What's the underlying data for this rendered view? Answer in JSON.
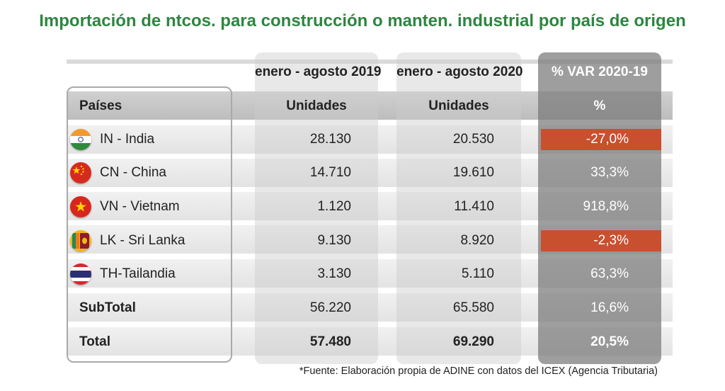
{
  "title": "Importación de ntcos. para construcción o manten. industrial por país de origen",
  "chart_data": {
    "type": "table",
    "period_headers": [
      "enero - agosto 2019",
      "enero - agosto 2020",
      "% VAR 2020-19"
    ],
    "columns": [
      "Países",
      "Unidades",
      "Unidades",
      "%"
    ],
    "rows": [
      {
        "country": "IN - India",
        "v2019": "28.130",
        "v2020": "20.530",
        "var": "-27,0%",
        "negative": true,
        "flag_icon": "india-flag-icon"
      },
      {
        "country": "CN - China",
        "v2019": "14.710",
        "v2020": "19.610",
        "var": "33,3%",
        "negative": false,
        "flag_icon": "china-flag-icon"
      },
      {
        "country": "VN - Vietnam",
        "v2019": "1.120",
        "v2020": "11.410",
        "var": "918,8%",
        "negative": false,
        "flag_icon": "vietnam-flag-icon"
      },
      {
        "country": "LK - Sri Lanka",
        "v2019": "9.130",
        "v2020": "8.920",
        "var": "-2,3%",
        "negative": true,
        "flag_icon": "sri-lanka-flag-icon"
      },
      {
        "country": "TH-Tailandia",
        "v2019": "3.130",
        "v2020": "5.110",
        "var": "63,3%",
        "negative": false,
        "flag_icon": "thailand-flag-icon"
      }
    ],
    "subtotal": {
      "label": "SubTotal",
      "v2019": "56.220",
      "v2020": "65.580",
      "var": "16,6%"
    },
    "total": {
      "label": "Total",
      "v2019": "57.480",
      "v2020": "69.290",
      "var": "20,5%"
    }
  },
  "colors": {
    "title": "#2e8540",
    "negative": "#c8502f"
  },
  "footnote": "*Fuente: Elaboración propia de ADINE con datos del ICEX (Agencia Tributaria)"
}
